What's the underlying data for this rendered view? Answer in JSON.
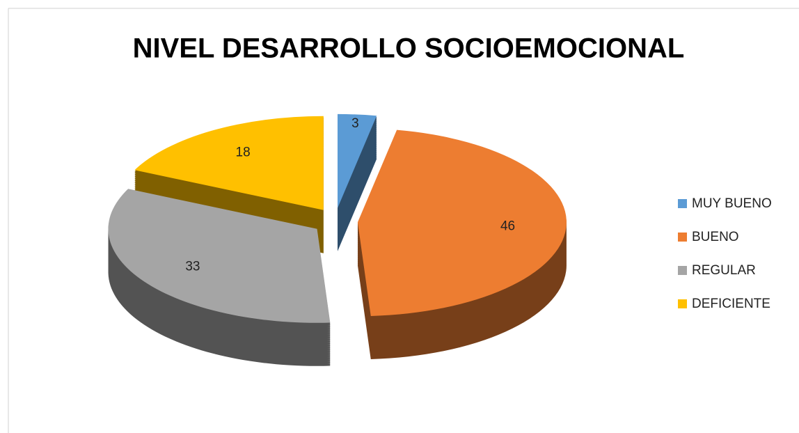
{
  "chart_data": {
    "type": "pie",
    "title": "NIVEL DESARROLLO SOCIOEMOCIONAL",
    "categories": [
      "MUY BUENO",
      "BUENO",
      "REGULAR",
      "DEFICIENTE"
    ],
    "values": [
      3,
      46,
      33,
      18
    ],
    "colors": [
      "#5b9bd5",
      "#ed7d31",
      "#a5a5a5",
      "#ffc000"
    ],
    "legend": "right"
  }
}
